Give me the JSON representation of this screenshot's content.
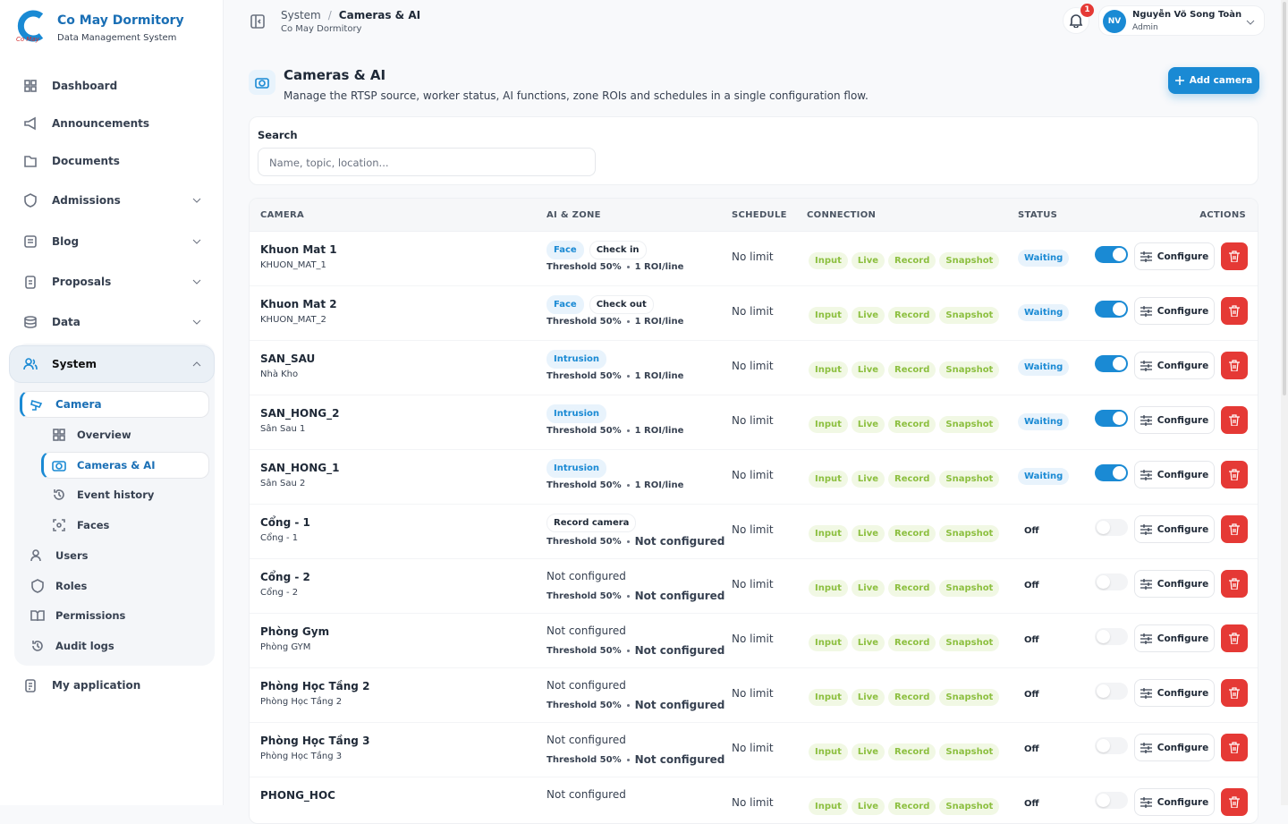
{
  "brand": {
    "name": "Co May Dormitory",
    "subtitle": "Data Management System",
    "logo_text": "Co May"
  },
  "nav": {
    "dashboard": "Dashboard",
    "announcements": "Announcements",
    "documents": "Documents",
    "admissions": "Admissions",
    "blog": "Blog",
    "proposals": "Proposals",
    "data": "Data",
    "system": "System",
    "camera": "Camera",
    "overview": "Overview",
    "cameras_ai": "Cameras & AI",
    "event_history": "Event history",
    "faces": "Faces",
    "users": "Users",
    "roles": "Roles",
    "permissions": "Permissions",
    "audit_logs": "Audit logs",
    "my_application": "My application"
  },
  "header": {
    "breadcrumb": [
      "System",
      "Cameras & AI"
    ],
    "separator": "/",
    "subtitle": "Co May Dormitory",
    "notifications": 1,
    "user_initials": "NV",
    "user_name": "Nguyễn Võ Song Toàn",
    "user_role": "Admin"
  },
  "page": {
    "title": "Cameras & AI",
    "description": "Manage the RTSP source, worker status, AI functions, zone ROIs and schedules in a single configuration flow.",
    "add_button": "Add camera"
  },
  "search": {
    "label": "Search",
    "placeholder": "Name, topic, location..."
  },
  "table": {
    "columns": [
      "CAMERA",
      "AI & ZONE",
      "SCHEDULE",
      "CONNECTION",
      "STATUS",
      "ACTIONS"
    ],
    "rows": [
      {
        "name": "Khuon Mat 1",
        "code": "KHUON_MAT_1",
        "tags": [
          "Face",
          "Check in"
        ],
        "threshold": "Threshold 50%",
        "roi": "1 ROI/line",
        "schedule": "No limit",
        "connection": [
          "Input",
          "Live",
          "Record",
          "Snapshot"
        ],
        "status": "Waiting",
        "enabled": true,
        "action": "Configure"
      },
      {
        "name": "Khuon Mat 2",
        "code": "KHUON_MAT_2",
        "tags": [
          "Face",
          "Check out"
        ],
        "threshold": "Threshold 50%",
        "roi": "1 ROI/line",
        "schedule": "No limit",
        "connection": [
          "Input",
          "Live",
          "Record",
          "Snapshot"
        ],
        "status": "Waiting",
        "enabled": true,
        "action": "Configure"
      },
      {
        "name": "SAN_SAU",
        "code": "Nhà Kho",
        "tags": [
          "Intrusion"
        ],
        "threshold": "Threshold 50%",
        "roi": "1 ROI/line",
        "schedule": "No limit",
        "connection": [
          "Input",
          "Live",
          "Record",
          "Snapshot"
        ],
        "status": "Waiting",
        "enabled": true,
        "action": "Configure"
      },
      {
        "name": "SAN_HONG_2",
        "code": "Sân Sau 1",
        "tags": [
          "Intrusion"
        ],
        "threshold": "Threshold 50%",
        "roi": "1 ROI/line",
        "schedule": "No limit",
        "connection": [
          "Input",
          "Live",
          "Record",
          "Snapshot"
        ],
        "status": "Waiting",
        "enabled": true,
        "action": "Configure"
      },
      {
        "name": "SAN_HONG_1",
        "code": "Sân Sau 2",
        "tags": [
          "Intrusion"
        ],
        "threshold": "Threshold 50%",
        "roi": "1 ROI/line",
        "schedule": "No limit",
        "connection": [
          "Input",
          "Live",
          "Record",
          "Snapshot"
        ],
        "status": "Waiting",
        "enabled": true,
        "action": "Configure"
      },
      {
        "name": "Cổng - 1",
        "code": "Cổng - 1",
        "tags": [
          "Record camera"
        ],
        "threshold": "Threshold 50%",
        "roi": "Not configured",
        "schedule": "No limit",
        "connection": [
          "Input",
          "Live",
          "Record",
          "Snapshot"
        ],
        "status": "Off",
        "enabled": false,
        "action": "Configure"
      },
      {
        "name": "Cổng - 2",
        "code": "Cổng - 2",
        "ai_text": "Not configured",
        "threshold": "Threshold 50%",
        "roi": "Not configured",
        "schedule": "No limit",
        "connection": [
          "Input",
          "Live",
          "Record",
          "Snapshot"
        ],
        "status": "Off",
        "enabled": false,
        "action": "Configure"
      },
      {
        "name": "Phòng Gym",
        "code": "Phòng GYM",
        "ai_text": "Not configured",
        "threshold": "Threshold 50%",
        "roi": "Not configured",
        "schedule": "No limit",
        "connection": [
          "Input",
          "Live",
          "Record",
          "Snapshot"
        ],
        "status": "Off",
        "enabled": false,
        "action": "Configure"
      },
      {
        "name": "Phòng Học Tầng 2",
        "code": "Phòng Học Tầng 2",
        "ai_text": "Not configured",
        "threshold": "Threshold 50%",
        "roi": "Not configured",
        "schedule": "No limit",
        "connection": [
          "Input",
          "Live",
          "Record",
          "Snapshot"
        ],
        "status": "Off",
        "enabled": false,
        "action": "Configure"
      },
      {
        "name": "Phòng Học Tầng 3",
        "code": "Phòng Học Tầng 3",
        "ai_text": "Not configured",
        "threshold": "Threshold 50%",
        "roi": "Not configured",
        "schedule": "No limit",
        "connection": [
          "Input",
          "Live",
          "Record",
          "Snapshot"
        ],
        "status": "Off",
        "enabled": false,
        "action": "Configure"
      },
      {
        "name": "PHONG_HOC",
        "ai_text": "Not configured",
        "schedule": "No limit",
        "connection": [
          "Input",
          "Live",
          "Record",
          "Snapshot"
        ],
        "status": "Off",
        "enabled": false,
        "action": "Configure"
      }
    ]
  }
}
